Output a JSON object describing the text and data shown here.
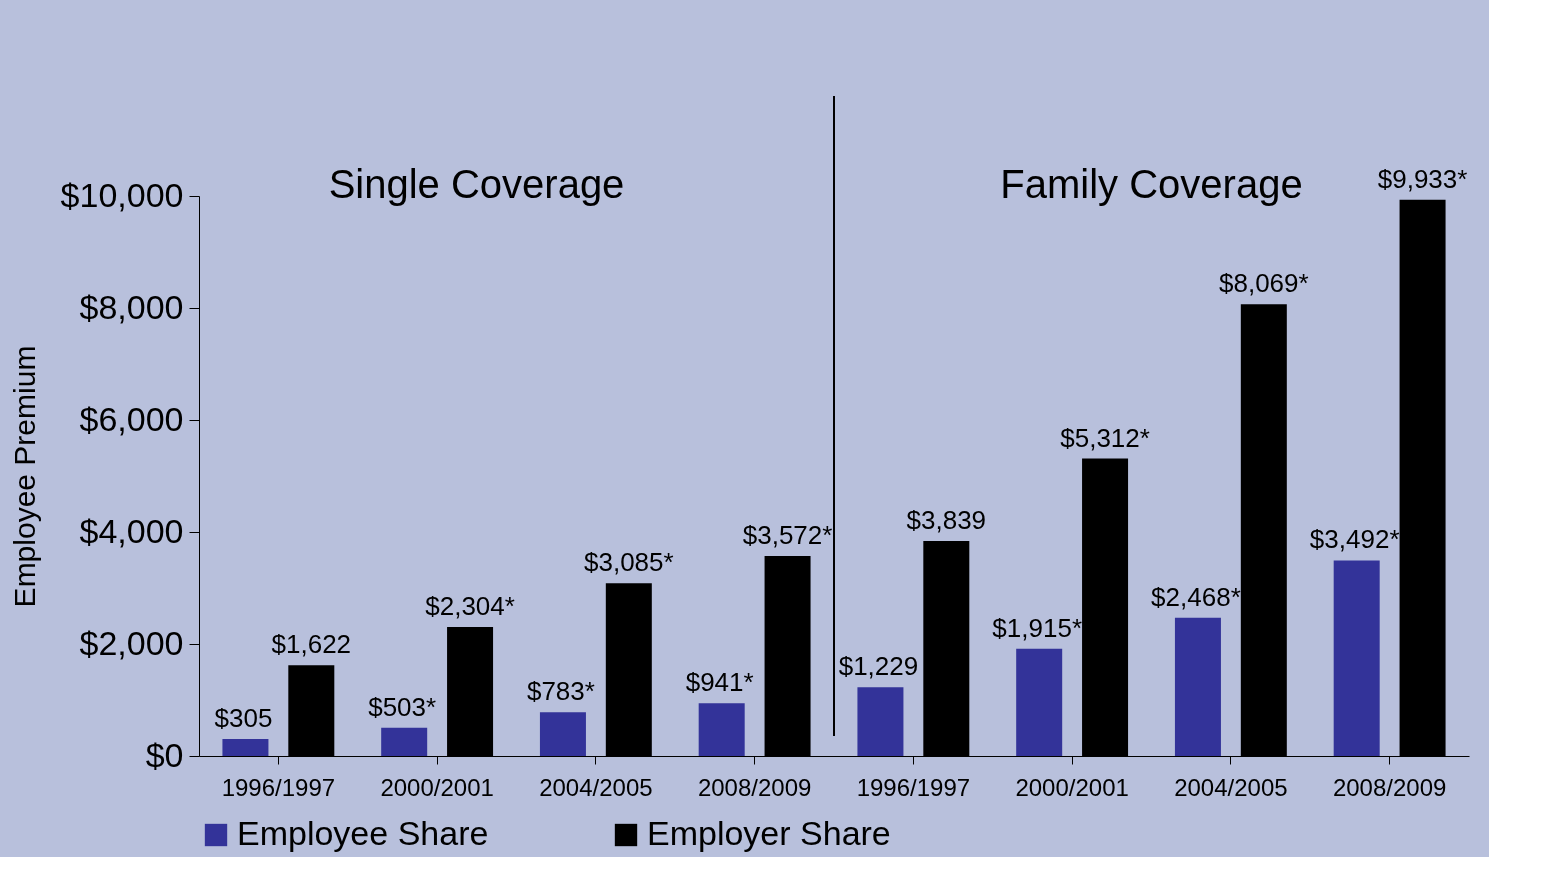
{
  "chart_data": {
    "type": "bar",
    "categories": [
      "1996/1997",
      "2000/2001",
      "2004/2005",
      "2008/2009",
      "1996/1997",
      "2000/2001",
      "2004/2005",
      "2008/2009"
    ],
    "series": [
      {
        "name": "Employee Share",
        "color": "#333399",
        "values": [
          305,
          503,
          783,
          941,
          1229,
          1915,
          2468,
          3492
        ],
        "value_labels": [
          "$305",
          "$503*",
          "$783*",
          "$941*",
          "$1,229",
          "$1,915*",
          "$2,468*",
          "$3,492*"
        ]
      },
      {
        "name": "Employer Share",
        "color": "#000000",
        "values": [
          1622,
          2304,
          3085,
          3572,
          3839,
          5312,
          8069,
          9933
        ],
        "value_labels": [
          "$1,622",
          "$2,304*",
          "$3,085*",
          "$3,572*",
          "$3,839",
          "$5,312*",
          "$8,069*",
          "$9,933*"
        ]
      }
    ],
    "ylabel": "Employee Premium",
    "ylim": [
      0,
      10000
    ],
    "yticks": [
      {
        "value": 0,
        "label": "$0"
      },
      {
        "value": 2000,
        "label": "$2,000"
      },
      {
        "value": 4000,
        "label": "$4,000"
      },
      {
        "value": 6000,
        "label": "$6,000"
      },
      {
        "value": 8000,
        "label": "$8,000"
      },
      {
        "value": 10000,
        "label": "$10,000"
      }
    ],
    "annotations": [
      "Single Coverage",
      "Family Coverage"
    ],
    "legend": "bottom",
    "grid": false
  }
}
